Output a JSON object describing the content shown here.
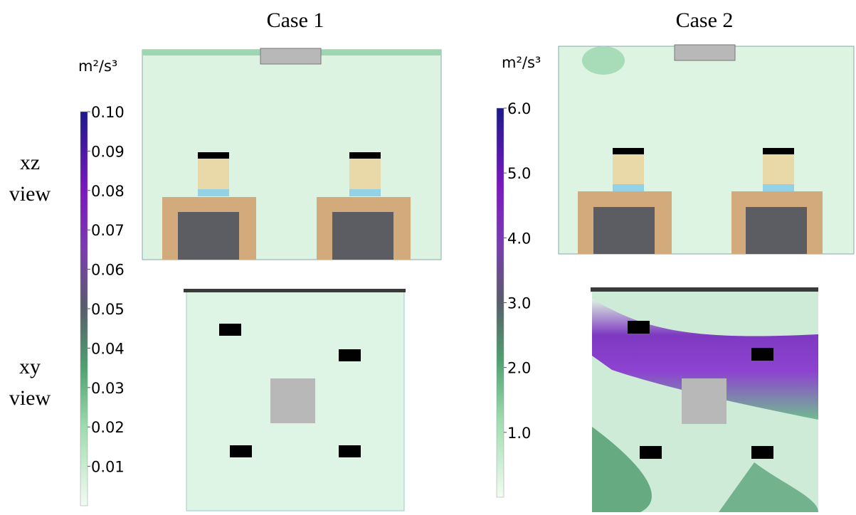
{
  "columns": [
    {
      "title": "Case 1",
      "colorbar": {
        "unit": "m²/s³",
        "lim": [
          0,
          0.1
        ],
        "ticks": [
          {
            "value": 0.1,
            "label": "0.10"
          },
          {
            "value": 0.09,
            "label": "0.09"
          },
          {
            "value": 0.08,
            "label": "0.08"
          },
          {
            "value": 0.07,
            "label": "0.07"
          },
          {
            "value": 0.06,
            "label": "0.06"
          },
          {
            "value": 0.05,
            "label": "0.05"
          },
          {
            "value": 0.04,
            "label": "0.04"
          },
          {
            "value": 0.03,
            "label": "0.03"
          },
          {
            "value": 0.02,
            "label": "0.02"
          },
          {
            "value": 0.01,
            "label": "0.01"
          }
        ]
      }
    },
    {
      "title": "Case 2",
      "colorbar": {
        "unit": "m²/s³",
        "lim": [
          0,
          6
        ],
        "ticks": [
          {
            "value": 6,
            "label": "6.0"
          },
          {
            "value": 5,
            "label": "5.0"
          },
          {
            "value": 4,
            "label": "4.0"
          },
          {
            "value": 3,
            "label": "3.0"
          },
          {
            "value": 2,
            "label": "2.0"
          },
          {
            "value": 1,
            "label": "1.0"
          }
        ]
      }
    }
  ],
  "rows": [
    "xz view",
    "xy view"
  ]
}
